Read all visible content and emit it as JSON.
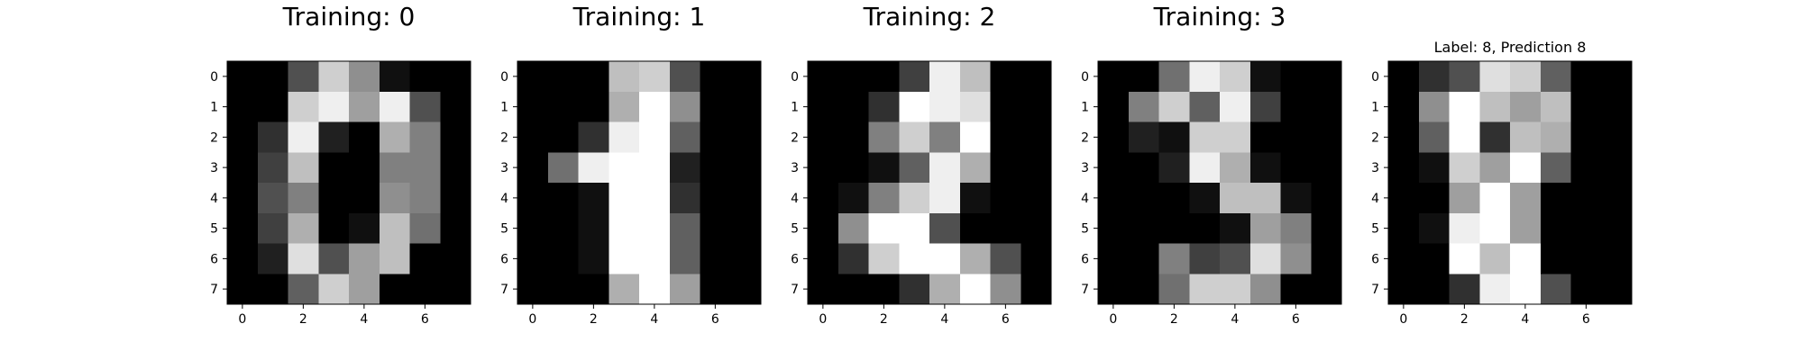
{
  "chart_data": [
    {
      "type": "heatmap",
      "title": "Training: 0",
      "colormap": "gray",
      "value_range": [
        0,
        16
      ],
      "x_ticks": [
        0,
        2,
        4,
        6
      ],
      "y_ticks": [
        0,
        1,
        2,
        3,
        4,
        5,
        6,
        7
      ],
      "xlim": [
        -0.5,
        7.5
      ],
      "ylim": [
        7.5,
        -0.5
      ],
      "grid": false,
      "values": [
        [
          0,
          0,
          5,
          13,
          9,
          1,
          0,
          0
        ],
        [
          0,
          0,
          13,
          15,
          10,
          15,
          5,
          0
        ],
        [
          0,
          3,
          15,
          2,
          0,
          11,
          8,
          0
        ],
        [
          0,
          4,
          12,
          0,
          0,
          8,
          8,
          0
        ],
        [
          0,
          5,
          8,
          0,
          0,
          9,
          8,
          0
        ],
        [
          0,
          4,
          11,
          0,
          1,
          12,
          7,
          0
        ],
        [
          0,
          2,
          14,
          5,
          10,
          12,
          0,
          0
        ],
        [
          0,
          0,
          6,
          13,
          10,
          0,
          0,
          0
        ]
      ]
    },
    {
      "type": "heatmap",
      "title": "Training: 1",
      "colormap": "gray",
      "value_range": [
        0,
        16
      ],
      "x_ticks": [
        0,
        2,
        4,
        6
      ],
      "y_ticks": [
        0,
        1,
        2,
        3,
        4,
        5,
        6,
        7
      ],
      "xlim": [
        -0.5,
        7.5
      ],
      "ylim": [
        7.5,
        -0.5
      ],
      "grid": false,
      "values": [
        [
          0,
          0,
          0,
          12,
          13,
          5,
          0,
          0
        ],
        [
          0,
          0,
          0,
          11,
          16,
          9,
          0,
          0
        ],
        [
          0,
          0,
          3,
          15,
          16,
          6,
          0,
          0
        ],
        [
          0,
          7,
          15,
          16,
          16,
          2,
          0,
          0
        ],
        [
          0,
          0,
          1,
          16,
          16,
          3,
          0,
          0
        ],
        [
          0,
          0,
          1,
          16,
          16,
          6,
          0,
          0
        ],
        [
          0,
          0,
          1,
          16,
          16,
          6,
          0,
          0
        ],
        [
          0,
          0,
          0,
          11,
          16,
          10,
          0,
          0
        ]
      ]
    },
    {
      "type": "heatmap",
      "title": "Training: 2",
      "colormap": "gray",
      "value_range": [
        0,
        16
      ],
      "x_ticks": [
        0,
        2,
        4,
        6
      ],
      "y_ticks": [
        0,
        1,
        2,
        3,
        4,
        5,
        6,
        7
      ],
      "xlim": [
        -0.5,
        7.5
      ],
      "ylim": [
        7.5,
        -0.5
      ],
      "grid": false,
      "values": [
        [
          0,
          0,
          0,
          4,
          15,
          12,
          0,
          0
        ],
        [
          0,
          0,
          3,
          16,
          15,
          14,
          0,
          0
        ],
        [
          0,
          0,
          8,
          13,
          8,
          16,
          0,
          0
        ],
        [
          0,
          0,
          1,
          6,
          15,
          11,
          0,
          0
        ],
        [
          0,
          1,
          8,
          13,
          15,
          1,
          0,
          0
        ],
        [
          0,
          9,
          16,
          16,
          5,
          0,
          0,
          0
        ],
        [
          0,
          3,
          13,
          16,
          16,
          11,
          5,
          0
        ],
        [
          0,
          0,
          0,
          3,
          11,
          16,
          9,
          0
        ]
      ]
    },
    {
      "type": "heatmap",
      "title": "Training: 3",
      "colormap": "gray",
      "value_range": [
        0,
        16
      ],
      "x_ticks": [
        0,
        2,
        4,
        6
      ],
      "y_ticks": [
        0,
        1,
        2,
        3,
        4,
        5,
        6,
        7
      ],
      "xlim": [
        -0.5,
        7.5
      ],
      "ylim": [
        7.5,
        -0.5
      ],
      "grid": false,
      "values": [
        [
          0,
          0,
          7,
          15,
          13,
          1,
          0,
          0
        ],
        [
          0,
          8,
          13,
          6,
          15,
          4,
          0,
          0
        ],
        [
          0,
          2,
          1,
          13,
          13,
          0,
          0,
          0
        ],
        [
          0,
          0,
          2,
          15,
          11,
          1,
          0,
          0
        ],
        [
          0,
          0,
          0,
          1,
          12,
          12,
          1,
          0
        ],
        [
          0,
          0,
          0,
          0,
          1,
          10,
          8,
          0
        ],
        [
          0,
          0,
          8,
          4,
          5,
          14,
          9,
          0
        ],
        [
          0,
          0,
          7,
          13,
          13,
          9,
          0,
          0
        ]
      ]
    },
    {
      "type": "heatmap",
      "title": "Label: 8, Prediction 8",
      "colormap": "gray",
      "value_range": [
        0,
        16
      ],
      "x_ticks": [
        0,
        2,
        4,
        6
      ],
      "y_ticks": [
        0,
        1,
        2,
        3,
        4,
        5,
        6,
        7
      ],
      "xlim": [
        -0.5,
        7.5
      ],
      "ylim": [
        7.5,
        -0.5
      ],
      "grid": false,
      "values": [
        [
          0,
          3,
          5,
          14,
          13,
          6,
          0,
          0
        ],
        [
          0,
          9,
          16,
          12,
          10,
          12,
          0,
          0
        ],
        [
          0,
          6,
          16,
          3,
          12,
          11,
          0,
          0
        ],
        [
          0,
          1,
          13,
          10,
          16,
          6,
          0,
          0
        ],
        [
          0,
          0,
          10,
          16,
          10,
          0,
          0,
          0
        ],
        [
          0,
          1,
          15,
          16,
          10,
          0,
          0,
          0
        ],
        [
          0,
          0,
          16,
          12,
          16,
          0,
          0,
          0
        ],
        [
          0,
          0,
          3,
          15,
          16,
          5,
          0,
          0
        ]
      ]
    }
  ]
}
